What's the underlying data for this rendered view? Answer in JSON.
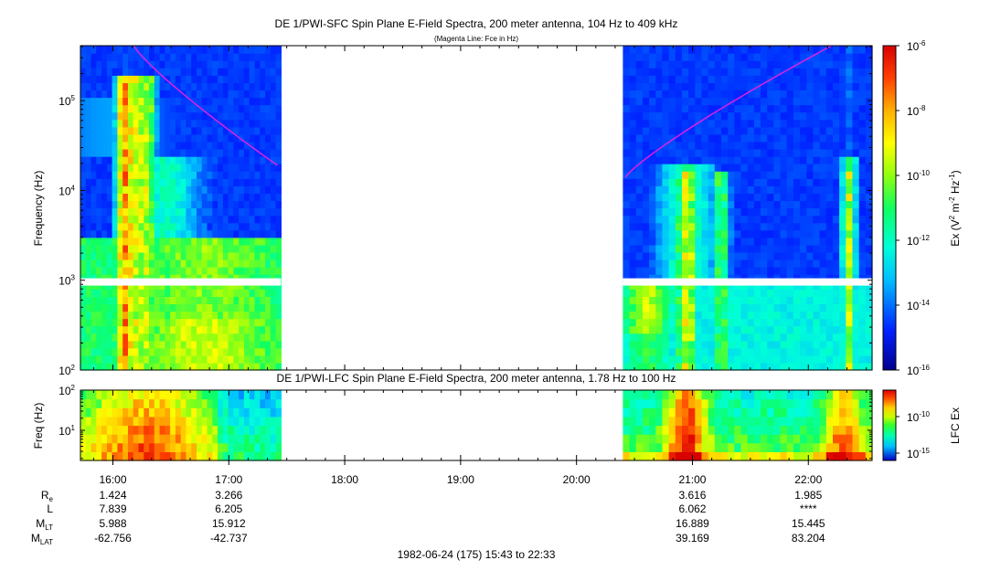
{
  "chart_data": [
    {
      "type": "heatmap",
      "title": "DE 1/PWI-SFC  Spin Plane E-Field Spectra, 200 meter antenna, 104 Hz to 409 kHz",
      "subtitle": "(Magenta Line: Fce in Hz)",
      "ylabel": "Frequency (Hz)",
      "yscale": "log",
      "ylim": [
        100,
        409000
      ],
      "ytick_values": [
        100,
        1000,
        10000,
        100000
      ],
      "ytick_bases": [
        "10",
        "10",
        "10",
        "10"
      ],
      "ytick_exps": [
        "2",
        "3",
        "4",
        "5"
      ],
      "xlim_hours": [
        15.72,
        22.55
      ],
      "data_gap_hours": [
        17.45,
        20.4
      ],
      "gap_band_hz": [
        870,
        1050
      ],
      "fce_curve": {
        "color": "#e020e0",
        "segment1_hours": [
          16.18,
          17.42
        ],
        "segment1_hz": [
          409000,
          19000
        ],
        "segment2_hours": [
          20.42,
          22.2
        ],
        "segment2_hz": [
          14000,
          409000
        ]
      },
      "colorbar": {
        "label_main": "Ex (V",
        "label_sup1": "2",
        "label_mid": " m",
        "label_sup2": "-2",
        "label_hz": " Hz",
        "label_sup3": "-1",
        "label_close": ")",
        "min_exp": -16,
        "max_exp": -6,
        "tick_base": "10",
        "tick_exps": [
          "-6",
          "-8",
          "-10",
          "-12",
          "-14",
          "-16"
        ]
      }
    },
    {
      "type": "heatmap",
      "title": "DE 1/PWI-LFC  Spin Plane E-Field Spectra, 200 meter antenna, 1.78 Hz to 100 Hz",
      "ylabel": "Freq (Hz)",
      "yscale": "log",
      "ylim": [
        1.78,
        100
      ],
      "ytick_values": [
        10,
        100
      ],
      "ytick_bases": [
        "10",
        "10"
      ],
      "ytick_exps": [
        "1",
        "2"
      ],
      "xlim_hours": [
        15.72,
        22.55
      ],
      "data_gap_hours": [
        17.45,
        20.4
      ],
      "colorbar": {
        "label": "LFC Ex",
        "tick_base": "10",
        "tick_exps": [
          "-10",
          "-15"
        ]
      }
    }
  ],
  "time_axis": {
    "tick_labels": [
      "16:00",
      "17:00",
      "18:00",
      "19:00",
      "20:00",
      "21:00",
      "22:00"
    ],
    "tick_hours": [
      16,
      17,
      18,
      19,
      20,
      21,
      22
    ]
  },
  "ephemeris": {
    "rows": [
      {
        "label_main": "R",
        "label_sub": "e",
        "values": [
          "1.424",
          "3.266",
          "",
          "",
          "",
          "3.616",
          "1.985"
        ]
      },
      {
        "label_main": "L",
        "label_sub": "",
        "values": [
          "7.839",
          "6.205",
          "",
          "",
          "",
          "6.062",
          "****"
        ]
      },
      {
        "label_main": "M",
        "label_sub": "LT",
        "values": [
          "5.988",
          "15.912",
          "",
          "",
          "",
          "16.889",
          "15.445"
        ]
      },
      {
        "label_main": "M",
        "label_sub": "LAT",
        "values": [
          "-62.756",
          "-42.737",
          "",
          "",
          "",
          "39.169",
          "83.204"
        ]
      }
    ]
  },
  "footer": {
    "date_range": "1982-06-24 (175) 15:43 to 22:33"
  }
}
